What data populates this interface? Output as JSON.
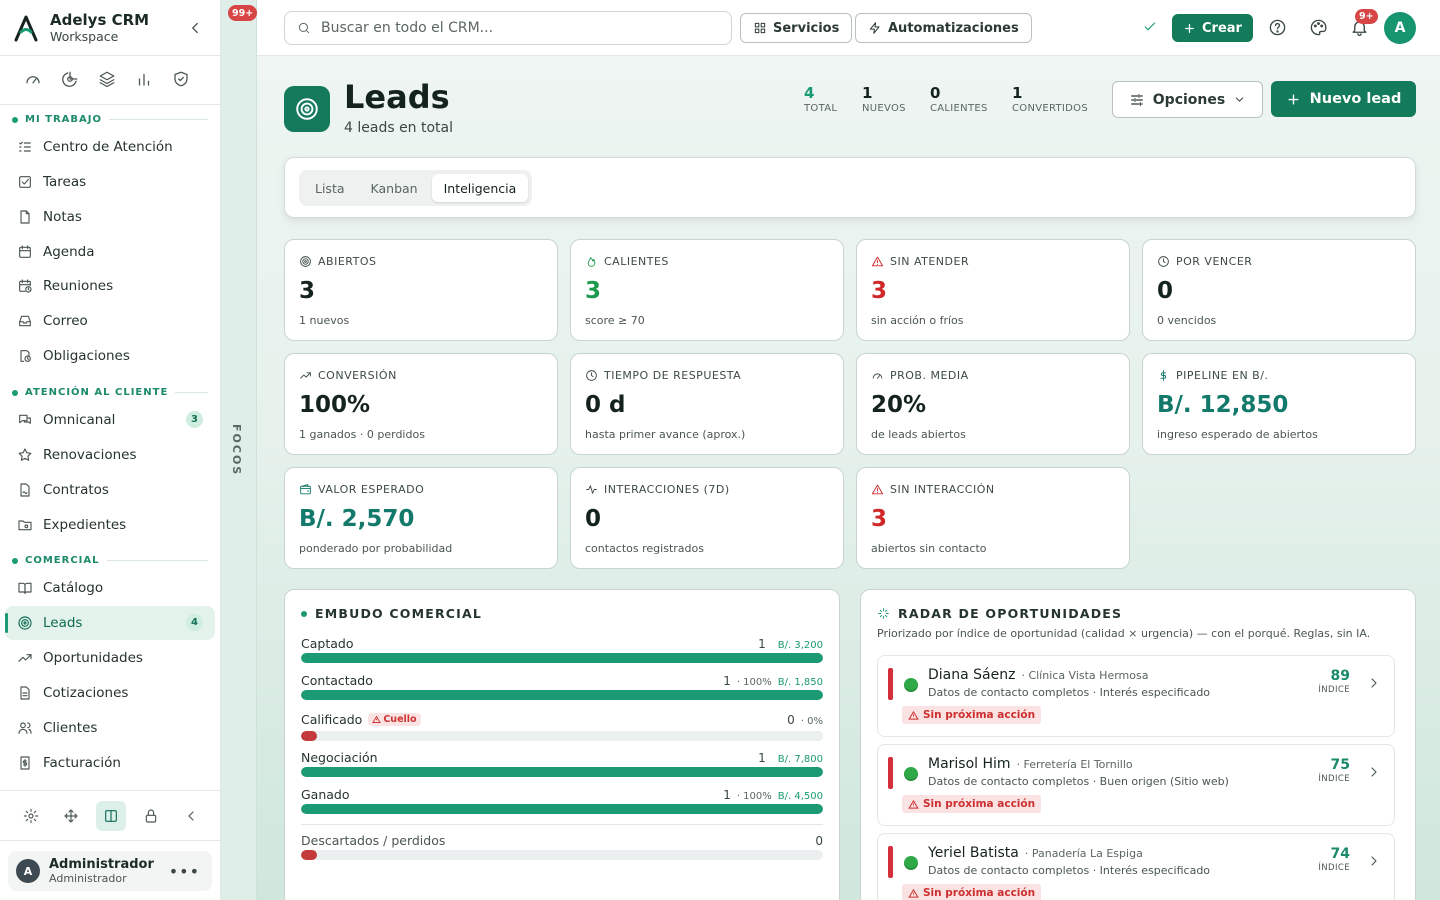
{
  "brand": {
    "name": "Adelys CRM",
    "subtitle": "Workspace"
  },
  "sidebar": {
    "sections": [
      {
        "label": "MI TRABAJO",
        "items": [
          {
            "label": "Centro de Atención",
            "icon": "list-check-icon"
          },
          {
            "label": "Tareas",
            "icon": "checkbox-icon"
          },
          {
            "label": "Notas",
            "icon": "note-icon"
          },
          {
            "label": "Agenda",
            "icon": "calendar-icon"
          },
          {
            "label": "Reuniones",
            "icon": "calendar-clock-icon"
          },
          {
            "label": "Correo",
            "icon": "inbox-icon"
          },
          {
            "label": "Obligaciones",
            "icon": "clock-doc-icon"
          }
        ]
      },
      {
        "label": "ATENCIÓN AL CLIENTE",
        "items": [
          {
            "label": "Omnicanal",
            "icon": "chat-icon",
            "badge": "3"
          },
          {
            "label": "Renovaciones",
            "icon": "star-icon"
          },
          {
            "label": "Contratos",
            "icon": "contract-icon"
          },
          {
            "label": "Expedientes",
            "icon": "folder-icon"
          }
        ]
      },
      {
        "label": "COMERCIAL",
        "items": [
          {
            "label": "Catálogo",
            "icon": "book-icon"
          },
          {
            "label": "Leads",
            "icon": "target-icon",
            "badge": "4",
            "active": true
          },
          {
            "label": "Oportunidades",
            "icon": "trend-icon"
          },
          {
            "label": "Cotizaciones",
            "icon": "document-icon"
          },
          {
            "label": "Clientes",
            "icon": "users-icon"
          },
          {
            "label": "Facturación",
            "icon": "invoice-icon"
          }
        ]
      }
    ],
    "user": {
      "name": "Administrador",
      "role": "Administrador",
      "initial": "A"
    }
  },
  "focos": {
    "label": "FOCOS",
    "count": "99+"
  },
  "topbar": {
    "search_placeholder": "Buscar en todo el CRM...",
    "servicios": "Servicios",
    "automatizaciones": "Automatizaciones",
    "crear": "Crear",
    "notif_count": "9+",
    "avatar": "A"
  },
  "page": {
    "title": "Leads",
    "subtitle": "4 leads en total",
    "stats": [
      {
        "value": "4",
        "label": "TOTAL",
        "accent": true
      },
      {
        "value": "1",
        "label": "NUEVOS"
      },
      {
        "value": "0",
        "label": "CALIENTES"
      },
      {
        "value": "1",
        "label": "CONVERTIDOS"
      }
    ],
    "opciones": "Opciones",
    "nuevo": "Nuevo lead",
    "tabs": [
      "Lista",
      "Kanban",
      "Inteligencia"
    ],
    "active_tab": "Inteligencia"
  },
  "kpis": [
    {
      "label": "ABIERTOS",
      "value": "3",
      "sub": "1 nuevos",
      "color": "#15231f",
      "icon": "target-icon"
    },
    {
      "label": "CALIENTES",
      "value": "3",
      "sub": "score ≥ 70",
      "color": "#1b9a4c",
      "icon": "flame-icon"
    },
    {
      "label": "SIN ATENDER",
      "value": "3",
      "sub": "sin acción o fríos",
      "color": "#d02828",
      "icon": "alert-icon"
    },
    {
      "label": "POR VENCER",
      "value": "0",
      "sub": "0 vencidos",
      "color": "#15231f",
      "icon": "clock-icon"
    },
    {
      "label": "CONVERSIÓN",
      "value": "100%",
      "sub": "1 ganados · 0 perdidos",
      "color": "#15231f",
      "icon": "trend-icon"
    },
    {
      "label": "TIEMPO DE RESPUESTA",
      "value": "0 d",
      "sub": "hasta primer avance (aprox.)",
      "color": "#15231f",
      "icon": "clock-icon"
    },
    {
      "label": "PROB. MEDIA",
      "value": "20%",
      "sub": "de leads abiertos",
      "color": "#15231f",
      "icon": "gauge-icon"
    },
    {
      "label": "PIPELINE EN B/.",
      "value": "B/. 12,850",
      "sub": "ingreso esperado de abiertos",
      "color": "#137a6b",
      "icon": "dollar-icon"
    },
    {
      "label": "VALOR ESPERADO",
      "value": "B/. 2,570",
      "sub": "ponderado por probabilidad",
      "color": "#137a6b",
      "icon": "wallet-icon"
    },
    {
      "label": "INTERACCIONES (7D)",
      "value": "0",
      "sub": "contactos registrados",
      "color": "#15231f",
      "icon": "activity-icon"
    },
    {
      "label": "SIN INTERACCIÓN",
      "value": "3",
      "sub": "abiertos sin contacto",
      "color": "#d02828",
      "icon": "alert-icon"
    }
  ],
  "funnel": {
    "title": "EMBUDO COMERCIAL",
    "stages": [
      {
        "name": "Captado",
        "count": "1",
        "pct": "",
        "amount": "B/. 3,200",
        "fill": 1.0,
        "color": "#1b9a74"
      },
      {
        "name": "Contactado",
        "count": "1",
        "pct": "· 100%",
        "amount": "B/. 1,850",
        "fill": 1.0,
        "color": "#1b9a74"
      },
      {
        "name": "Calificado",
        "count": "0",
        "pct": "· 0%",
        "amount": "",
        "fill": 0.03,
        "color": "#c43a3a",
        "badge": "Cuello"
      },
      {
        "name": "Negociación",
        "count": "1",
        "pct": "",
        "amount": "B/. 7,800",
        "fill": 1.0,
        "color": "#1b9a74"
      },
      {
        "name": "Ganado",
        "count": "1",
        "pct": "· 100%",
        "amount": "B/. 4,500",
        "fill": 1.0,
        "color": "#1b9a74"
      }
    ],
    "discarded": {
      "name": "Descartados / perdidos",
      "count": "0",
      "fill": 0.03,
      "color": "#c43a3a"
    }
  },
  "radar": {
    "title": "RADAR DE OPORTUNIDADES",
    "subtitle": "Priorizado por índice de oportunidad (calidad × urgencia) — con el porqué. Reglas, sin IA.",
    "index_label": "ÍNDICE",
    "items": [
      {
        "name": "Diana Sáenz",
        "company": "· Clínica Vista Hermosa",
        "reasons": "Datos de contacto completos · Interés especificado",
        "tag": "Sin próxima acción",
        "score": "89"
      },
      {
        "name": "Marisol Him",
        "company": "· Ferretería El Tornillo",
        "reasons": "Datos de contacto completos · Buen origen (Sitio web)",
        "tag": "Sin próxima acción",
        "score": "75"
      },
      {
        "name": "Yeriel Batista",
        "company": "· Panadería La Espiga",
        "reasons": "Datos de contacto completos · Interés especificado",
        "tag": "Sin próxima acción",
        "score": "74"
      }
    ]
  }
}
